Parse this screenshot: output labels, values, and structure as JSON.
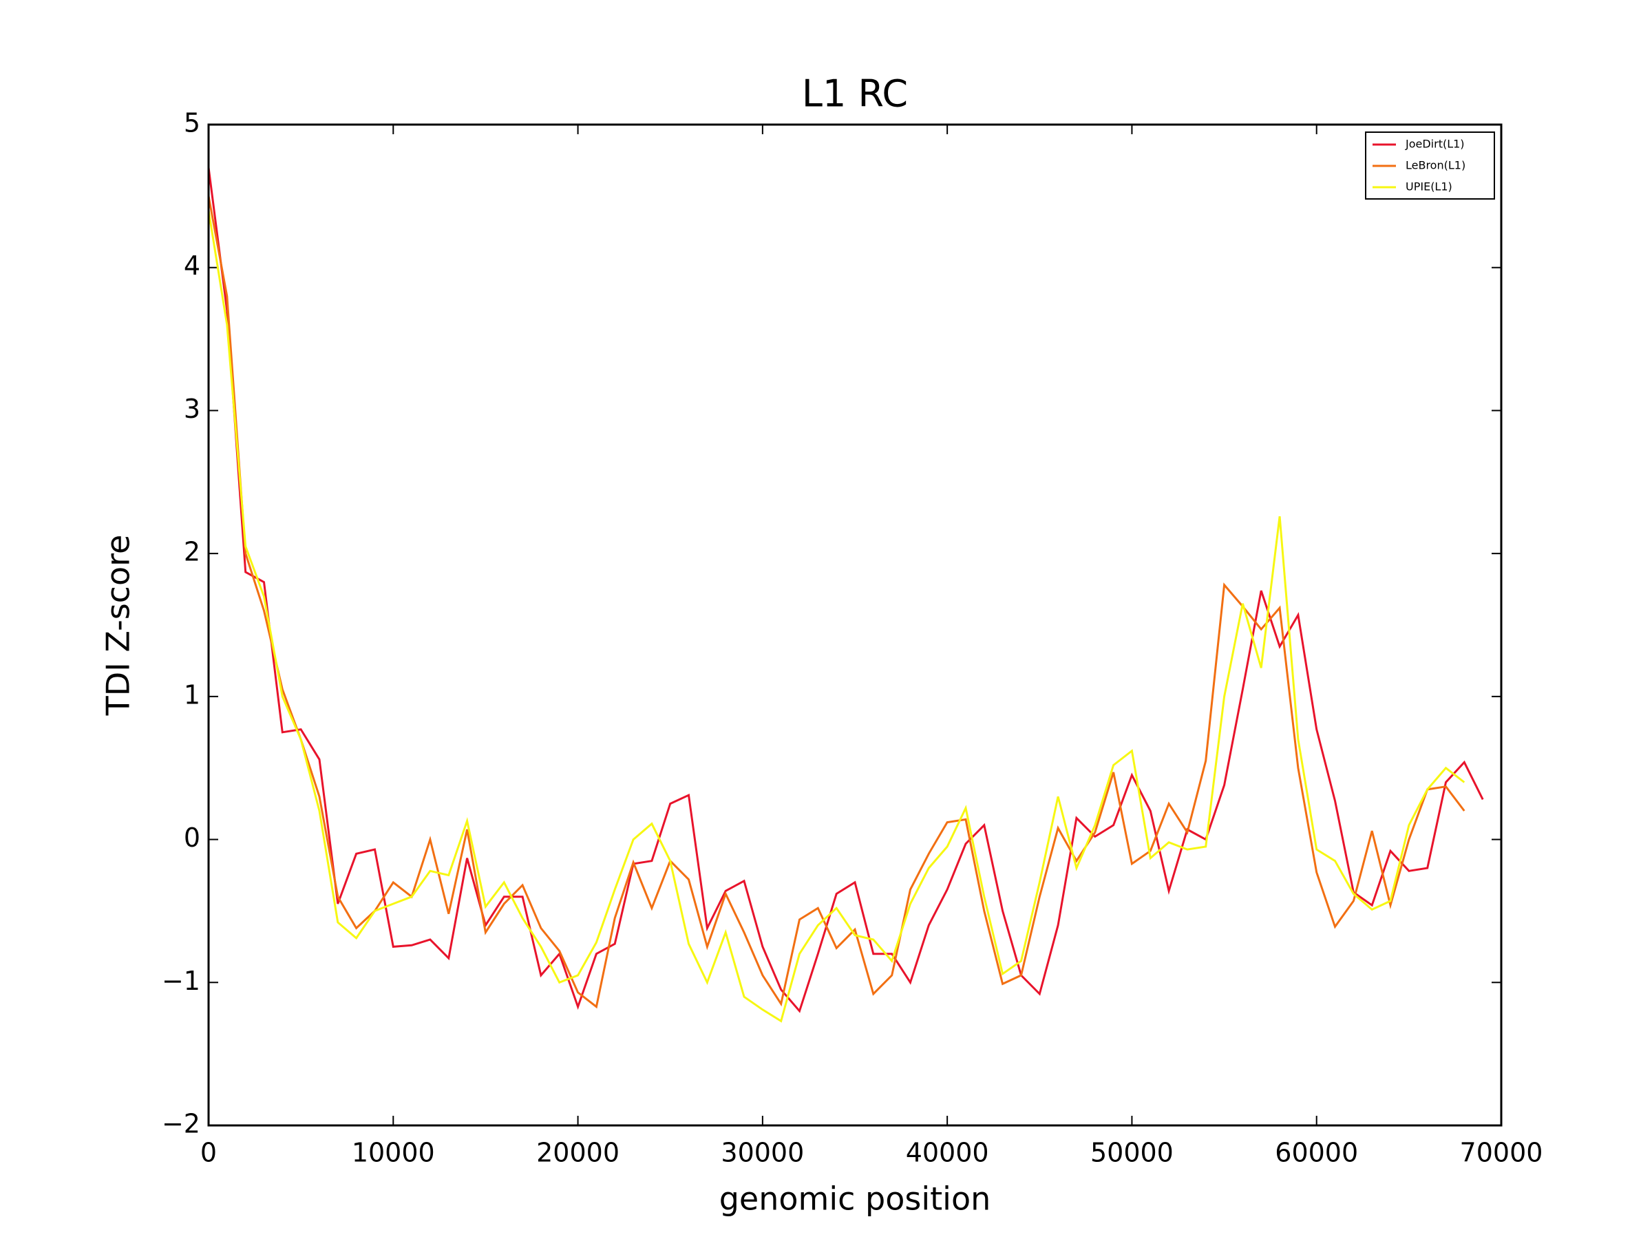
{
  "chart_data": {
    "type": "line",
    "title": "L1 RC",
    "xlabel": "genomic position",
    "ylabel": "TDI Z-score",
    "x": [
      0,
      1000,
      2000,
      3000,
      4000,
      5000,
      6000,
      7000,
      8000,
      9000,
      10000,
      11000,
      12000,
      13000,
      14000,
      15000,
      16000,
      17000,
      18000,
      19000,
      20000,
      21000,
      22000,
      23000,
      24000,
      25000,
      26000,
      27000,
      28000,
      29000,
      30000,
      31000,
      32000,
      33000,
      34000,
      35000,
      36000,
      37000,
      38000,
      39000,
      40000,
      41000,
      42000,
      43000,
      44000,
      45000,
      46000,
      47000,
      48000,
      49000,
      50000,
      51000,
      52000,
      53000,
      54000,
      55000,
      56000,
      57000,
      58000,
      59000,
      60000,
      61000,
      62000,
      63000,
      64000,
      65000,
      66000,
      67000,
      68000,
      69000
    ],
    "series": [
      {
        "name": "JoeDirt(L1)",
        "color": "#e8132b",
        "values": [
          4.7,
          3.7,
          1.87,
          1.8,
          0.75,
          0.77,
          0.56,
          -0.45,
          -0.1,
          -0.07,
          -0.75,
          -0.74,
          -0.7,
          -0.83,
          -0.13,
          -0.6,
          -0.4,
          -0.4,
          -0.95,
          -0.8,
          -1.17,
          -0.8,
          -0.73,
          -0.17,
          -0.15,
          0.25,
          0.31,
          -0.62,
          -0.36,
          -0.29,
          -0.75,
          -1.05,
          -1.2,
          -0.8,
          -0.38,
          -0.3,
          -0.8,
          -0.8,
          -1.0,
          -0.6,
          -0.35,
          -0.03,
          0.1,
          -0.5,
          -0.95,
          -1.08,
          -0.6,
          0.15,
          0.02,
          0.1,
          0.45,
          0.2,
          -0.36,
          0.07,
          0.0,
          0.38,
          1.05,
          1.74,
          1.35,
          1.57,
          0.77,
          0.27,
          -0.37,
          -0.46,
          -0.08,
          -0.22,
          -0.2,
          0.4,
          0.54,
          0.28
        ]
      },
      {
        "name": "LeBron(L1)",
        "color": "#f26f12",
        "values": [
          4.5,
          3.8,
          2.0,
          1.6,
          1.05,
          0.7,
          0.3,
          -0.4,
          -0.62,
          -0.5,
          -0.3,
          -0.4,
          0.0,
          -0.52,
          0.07,
          -0.65,
          -0.45,
          -0.32,
          -0.62,
          -0.78,
          -1.07,
          -1.17,
          -0.55,
          -0.16,
          -0.48,
          -0.15,
          -0.28,
          -0.75,
          -0.38,
          -0.65,
          -0.95,
          -1.15,
          -0.56,
          -0.48,
          -0.76,
          -0.63,
          -1.08,
          -0.95,
          -0.35,
          -0.1,
          0.12,
          0.14,
          -0.5,
          -1.01,
          -0.95,
          -0.4,
          0.08,
          -0.15,
          0.05,
          0.47,
          -0.17,
          -0.08,
          0.25,
          0.05,
          0.55,
          1.78,
          1.63,
          1.47,
          1.62,
          0.5,
          -0.23,
          -0.61,
          -0.43,
          0.06,
          -0.46,
          0.0,
          0.35,
          0.37,
          0.2,
          null
        ]
      },
      {
        "name": "UPIE(L1)",
        "color": "#f7f712",
        "values": [
          4.4,
          3.6,
          2.05,
          1.7,
          1.0,
          0.7,
          0.2,
          -0.58,
          -0.69,
          -0.5,
          -0.45,
          -0.4,
          -0.22,
          -0.25,
          0.13,
          -0.47,
          -0.3,
          -0.55,
          -0.75,
          -1.0,
          -0.95,
          -0.72,
          -0.35,
          0.0,
          0.11,
          -0.15,
          -0.73,
          -1.0,
          -0.65,
          -1.1,
          -1.19,
          -1.27,
          -0.8,
          -0.6,
          -0.48,
          -0.67,
          -0.7,
          -0.85,
          -0.45,
          -0.2,
          -0.05,
          0.22,
          -0.4,
          -0.94,
          -0.85,
          -0.3,
          0.3,
          -0.2,
          0.1,
          0.52,
          0.62,
          -0.13,
          -0.02,
          -0.07,
          -0.05,
          1.0,
          1.65,
          1.2,
          2.26,
          0.7,
          -0.07,
          -0.15,
          -0.38,
          -0.49,
          -0.43,
          0.1,
          0.35,
          0.5,
          0.4,
          null
        ]
      }
    ],
    "xlim": [
      0,
      70000
    ],
    "xticks": [
      0,
      10000,
      20000,
      30000,
      40000,
      50000,
      60000,
      70000
    ],
    "ylim": [
      -2,
      5
    ],
    "yticks": [
      {
        "value": -2,
        "label": "−2"
      },
      {
        "value": -1,
        "label": "−1"
      },
      0,
      1,
      2,
      3,
      4,
      5
    ],
    "grid": false,
    "legend": "upper right"
  }
}
